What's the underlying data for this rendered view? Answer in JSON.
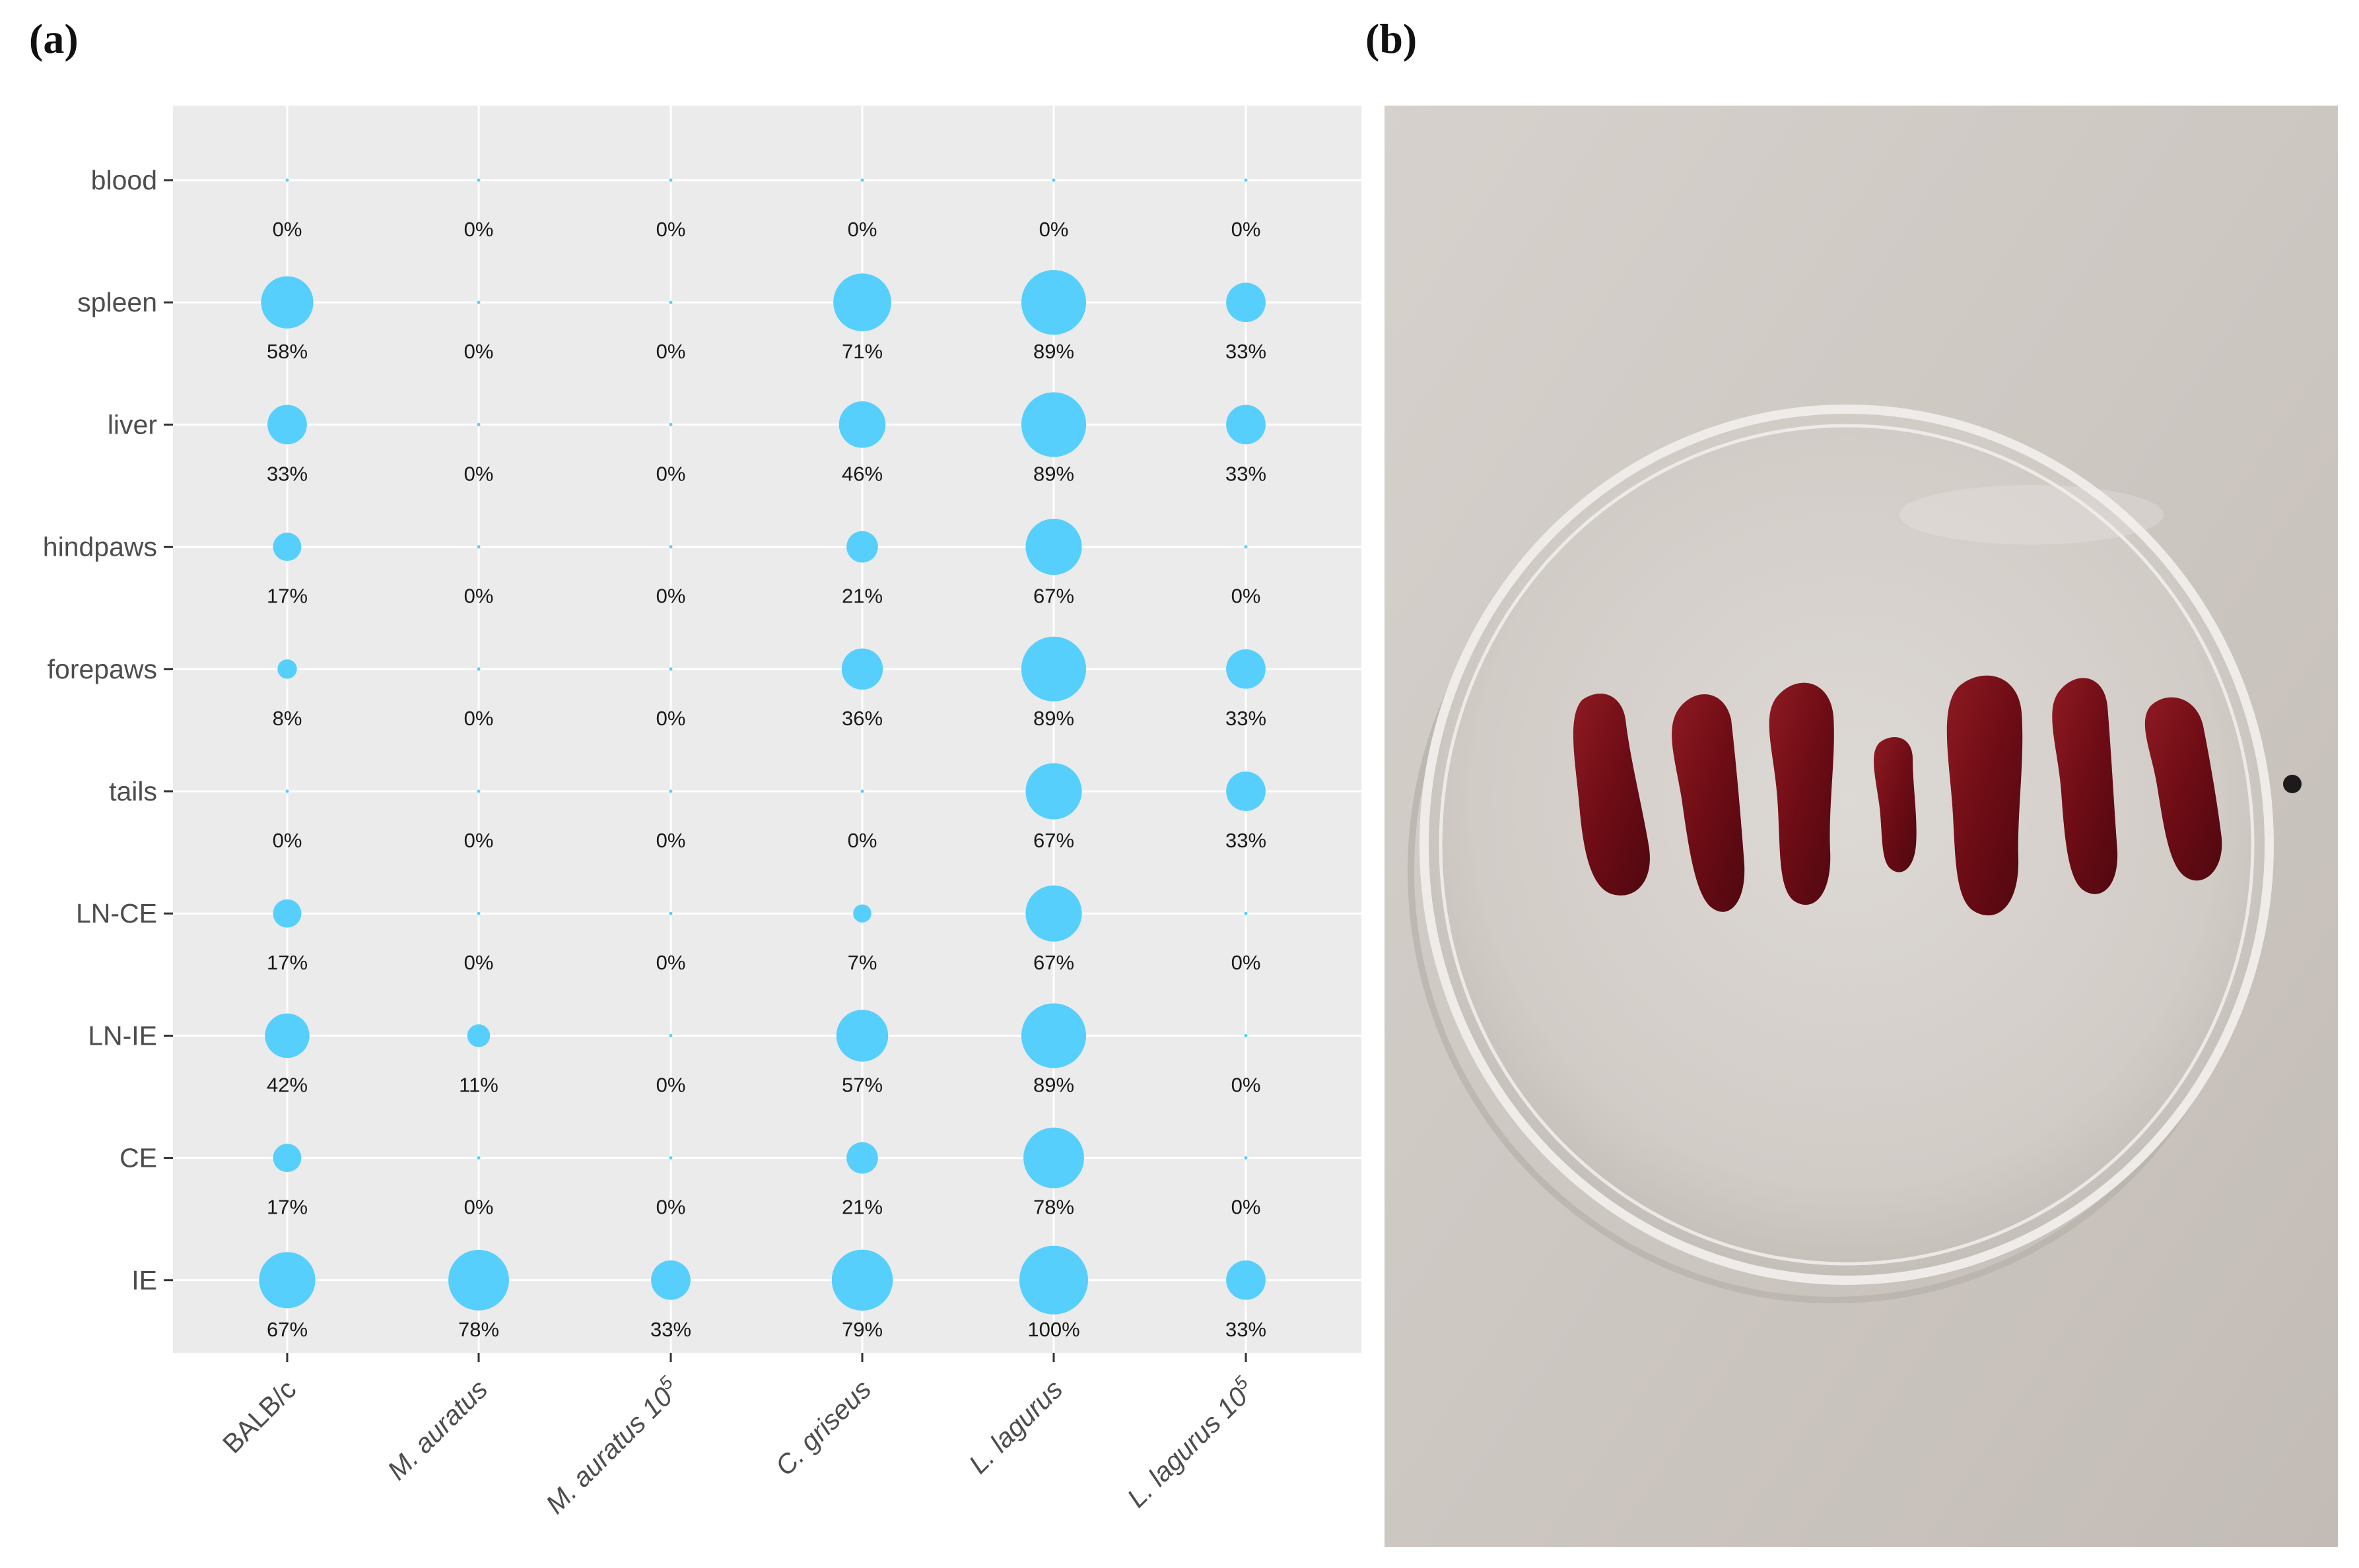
{
  "panel_labels": {
    "a": "(a)",
    "b": "(b)"
  },
  "colors": {
    "bubble": "#57cffc",
    "panel_bg": "#ebebeb",
    "grid": "#ffffff",
    "tick_text": "#4d4d4d",
    "value_text": "#1a1a1a"
  },
  "chart_data": {
    "type": "scatter",
    "subtype": "bubble-matrix",
    "title": "",
    "xlabel": "",
    "ylabel": "",
    "grid": true,
    "legend": "none",
    "x_categories": [
      {
        "text": "BALB/c",
        "italic": false,
        "sup": ""
      },
      {
        "text": "M. auratus",
        "italic": true,
        "sup": ""
      },
      {
        "text": "M. auratus 10",
        "italic": true,
        "sup": "5"
      },
      {
        "text": "C. griseus",
        "italic": true,
        "sup": ""
      },
      {
        "text": "L. lagurus",
        "italic": true,
        "sup": ""
      },
      {
        "text": "L. lagurus 10",
        "italic": true,
        "sup": "5"
      }
    ],
    "y_categories": [
      "blood",
      "spleen",
      "liver",
      "hindpaws",
      "forepaws",
      "tails",
      "LN-CE",
      "LN-IE",
      "CE",
      "IE"
    ],
    "values": [
      [
        0,
        0,
        0,
        0,
        0,
        0
      ],
      [
        58,
        0,
        0,
        71,
        89,
        33
      ],
      [
        33,
        0,
        0,
        46,
        89,
        33
      ],
      [
        17,
        0,
        0,
        21,
        67,
        0
      ],
      [
        8,
        0,
        0,
        36,
        89,
        33
      ],
      [
        0,
        0,
        0,
        0,
        67,
        33
      ],
      [
        17,
        0,
        0,
        7,
        67,
        0
      ],
      [
        42,
        11,
        0,
        57,
        89,
        0
      ],
      [
        17,
        0,
        0,
        21,
        78,
        0
      ],
      [
        67,
        78,
        33,
        79,
        100,
        33
      ]
    ],
    "labels": [
      [
        "0%",
        "0%",
        "0%",
        "0%",
        "0%",
        "0%"
      ],
      [
        "58%",
        "0%",
        "0%",
        "71%",
        "89%",
        "33%"
      ],
      [
        "33%",
        "0%",
        "0%",
        "46%",
        "89%",
        "33%"
      ],
      [
        "17%",
        "0%",
        "0%",
        "21%",
        "67%",
        "0%"
      ],
      [
        "8%",
        "0%",
        "0%",
        "36%",
        "89%",
        "33%"
      ],
      [
        "0%",
        "0%",
        "0%",
        "0%",
        "67%",
        "33%"
      ],
      [
        "17%",
        "0%",
        "0%",
        "7%",
        "67%",
        "0%"
      ],
      [
        "42%",
        "11%",
        "0%",
        "57%",
        "89%",
        "0%"
      ],
      [
        "17%",
        "0%",
        "0%",
        "21%",
        "78%",
        "0%"
      ],
      [
        "67%",
        "78%",
        "33%",
        "79%",
        "100%",
        "33%"
      ]
    ],
    "value_range": [
      0,
      100
    ]
  },
  "photo": {
    "description_name": "petri-dish-with-spleens",
    "dish_color": "#dcdcdc",
    "background_color": "#cfc9c4",
    "organ_color": "#7a0f18"
  }
}
